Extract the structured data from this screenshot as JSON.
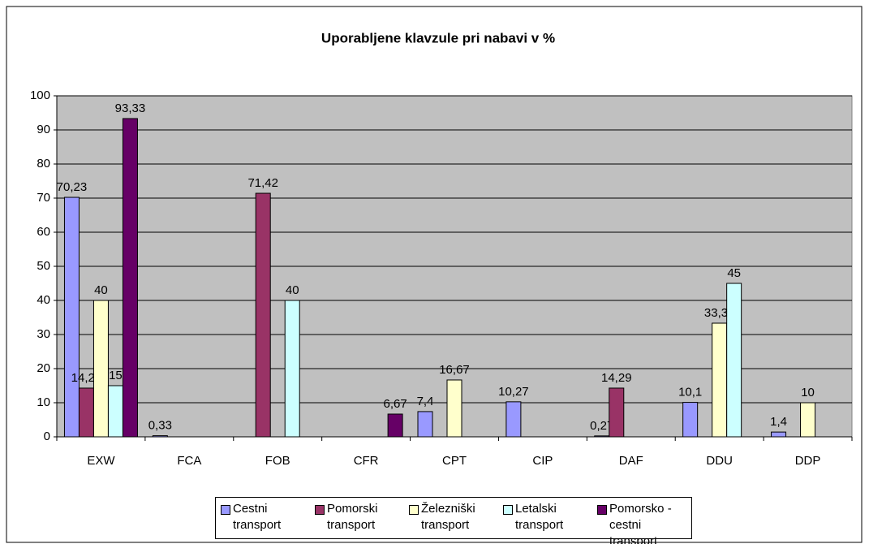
{
  "chart_data": {
    "type": "bar",
    "title": "Uporabljene klavzule pri nabavi v %",
    "categories": [
      "EXW",
      "FCA",
      "FOB",
      "CFR",
      "CPT",
      "CIP",
      "DAF",
      "DDU",
      "DDP"
    ],
    "series": [
      {
        "name": "Cestni transport",
        "color": "#9999ff",
        "values": [
          70.23,
          0.33,
          null,
          null,
          7.4,
          10.27,
          0.27,
          10.1,
          1.4
        ],
        "value_labels": [
          "70,23",
          "0,33",
          null,
          null,
          "7,4",
          "10,27",
          "0,27",
          "10,1",
          "1,4"
        ]
      },
      {
        "name": "Pomorski transport",
        "color": "#993366",
        "values": [
          14.29,
          null,
          71.42,
          null,
          null,
          null,
          14.29,
          null,
          null
        ],
        "value_labels": [
          "14,29",
          null,
          "71,42",
          null,
          null,
          null,
          "14,29",
          null,
          null
        ]
      },
      {
        "name": "Železniški transport",
        "color": "#ffffcc",
        "values": [
          40,
          null,
          null,
          null,
          16.67,
          null,
          null,
          33.33,
          10
        ],
        "value_labels": [
          "40",
          null,
          null,
          null,
          "16,67",
          null,
          null,
          "33,33",
          "10"
        ]
      },
      {
        "name": "Letalski transport",
        "color": "#ccffff",
        "values": [
          15,
          null,
          40,
          null,
          null,
          null,
          null,
          45,
          null
        ],
        "value_labels": [
          "15",
          null,
          "40",
          null,
          null,
          null,
          null,
          "45",
          null
        ]
      },
      {
        "name": "Pomorsko - cestni transport",
        "color": "#660066",
        "values": [
          93.33,
          null,
          null,
          6.67,
          null,
          null,
          null,
          null,
          null
        ],
        "value_labels": [
          "93,33",
          null,
          null,
          "6,67",
          null,
          null,
          null,
          null,
          null
        ]
      }
    ],
    "ylim": [
      0,
      100
    ],
    "yticks": [
      0,
      10,
      20,
      30,
      40,
      50,
      60,
      70,
      80,
      90,
      100
    ],
    "grid": true,
    "legend": "bottom",
    "plot_background": "#c0c0c0"
  }
}
